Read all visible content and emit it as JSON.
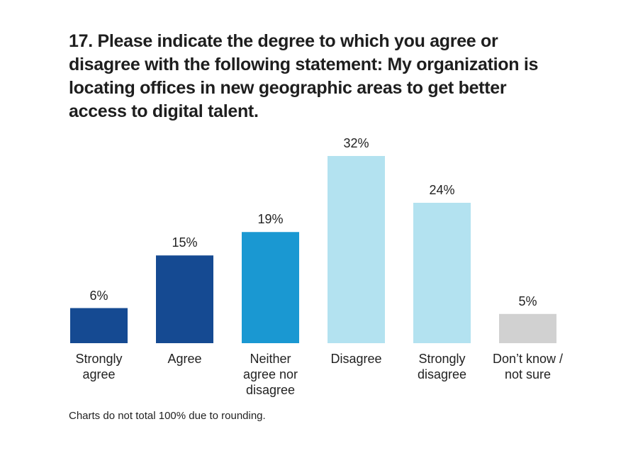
{
  "chart_data": {
    "type": "bar",
    "title": "17. Please indicate the degree to which you agree or disagree with the following statement: My organization is locating offices in new geographic areas to get better access to digital talent.",
    "categories": [
      "Strongly agree",
      "Agree",
      "Neither agree nor disagree",
      "Disagree",
      "Strongly disagree",
      "Don’t know / not sure"
    ],
    "values": [
      6,
      15,
      19,
      32,
      24,
      5
    ],
    "value_labels": [
      "6%",
      "15%",
      "19%",
      "32%",
      "24%",
      "5%"
    ],
    "colors": [
      "#154a92",
      "#154a92",
      "#1a98d2",
      "#b3e2f0",
      "#b3e2f0",
      "#d1d1d1"
    ],
    "note": "Charts do not total 100% due to rounding."
  }
}
